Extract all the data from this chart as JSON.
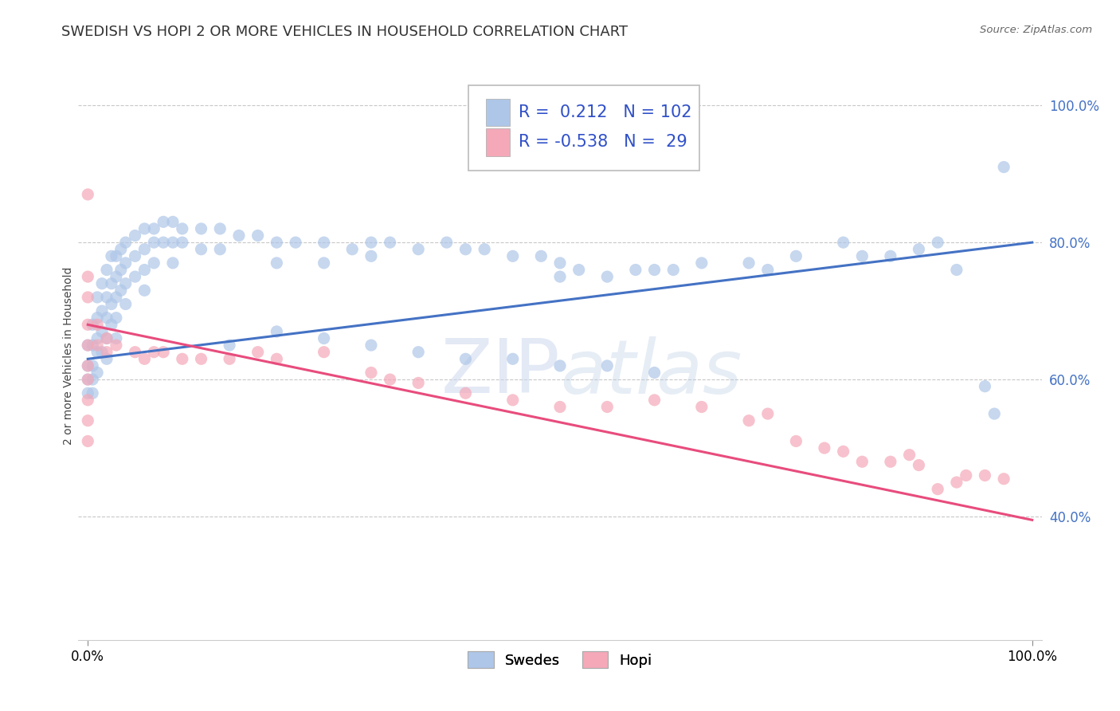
{
  "title": "SWEDISH VS HOPI 2 OR MORE VEHICLES IN HOUSEHOLD CORRELATION CHART",
  "source": "Source: ZipAtlas.com",
  "ylabel": "2 or more Vehicles in Household",
  "watermark": "ZIPatlas",
  "legend_entries": [
    {
      "label": "Swedes",
      "color": "#aec6e8",
      "R": 0.212,
      "N": 102
    },
    {
      "label": "Hopi",
      "color": "#f4a8b8",
      "R": -0.538,
      "N": 29
    }
  ],
  "swedish_scatter": [
    [
      0.0,
      0.65
    ],
    [
      0.0,
      0.62
    ],
    [
      0.0,
      0.6
    ],
    [
      0.0,
      0.58
    ],
    [
      0.005,
      0.68
    ],
    [
      0.005,
      0.65
    ],
    [
      0.005,
      0.62
    ],
    [
      0.005,
      0.6
    ],
    [
      0.005,
      0.58
    ],
    [
      0.01,
      0.72
    ],
    [
      0.01,
      0.69
    ],
    [
      0.01,
      0.66
    ],
    [
      0.01,
      0.64
    ],
    [
      0.01,
      0.61
    ],
    [
      0.015,
      0.74
    ],
    [
      0.015,
      0.7
    ],
    [
      0.015,
      0.67
    ],
    [
      0.015,
      0.64
    ],
    [
      0.02,
      0.76
    ],
    [
      0.02,
      0.72
    ],
    [
      0.02,
      0.69
    ],
    [
      0.02,
      0.66
    ],
    [
      0.02,
      0.63
    ],
    [
      0.025,
      0.78
    ],
    [
      0.025,
      0.74
    ],
    [
      0.025,
      0.71
    ],
    [
      0.025,
      0.68
    ],
    [
      0.03,
      0.78
    ],
    [
      0.03,
      0.75
    ],
    [
      0.03,
      0.72
    ],
    [
      0.03,
      0.69
    ],
    [
      0.03,
      0.66
    ],
    [
      0.035,
      0.79
    ],
    [
      0.035,
      0.76
    ],
    [
      0.035,
      0.73
    ],
    [
      0.04,
      0.8
    ],
    [
      0.04,
      0.77
    ],
    [
      0.04,
      0.74
    ],
    [
      0.04,
      0.71
    ],
    [
      0.05,
      0.81
    ],
    [
      0.05,
      0.78
    ],
    [
      0.05,
      0.75
    ],
    [
      0.06,
      0.82
    ],
    [
      0.06,
      0.79
    ],
    [
      0.06,
      0.76
    ],
    [
      0.06,
      0.73
    ],
    [
      0.07,
      0.82
    ],
    [
      0.07,
      0.8
    ],
    [
      0.07,
      0.77
    ],
    [
      0.08,
      0.83
    ],
    [
      0.08,
      0.8
    ],
    [
      0.09,
      0.83
    ],
    [
      0.09,
      0.8
    ],
    [
      0.09,
      0.77
    ],
    [
      0.1,
      0.82
    ],
    [
      0.1,
      0.8
    ],
    [
      0.12,
      0.82
    ],
    [
      0.12,
      0.79
    ],
    [
      0.14,
      0.82
    ],
    [
      0.14,
      0.79
    ],
    [
      0.16,
      0.81
    ],
    [
      0.18,
      0.81
    ],
    [
      0.2,
      0.8
    ],
    [
      0.2,
      0.77
    ],
    [
      0.22,
      0.8
    ],
    [
      0.25,
      0.8
    ],
    [
      0.25,
      0.77
    ],
    [
      0.28,
      0.79
    ],
    [
      0.3,
      0.8
    ],
    [
      0.3,
      0.78
    ],
    [
      0.32,
      0.8
    ],
    [
      0.35,
      0.79
    ],
    [
      0.38,
      0.8
    ],
    [
      0.4,
      0.79
    ],
    [
      0.42,
      0.79
    ],
    [
      0.45,
      0.78
    ],
    [
      0.48,
      0.78
    ],
    [
      0.5,
      0.77
    ],
    [
      0.5,
      0.75
    ],
    [
      0.52,
      0.76
    ],
    [
      0.55,
      0.75
    ],
    [
      0.58,
      0.76
    ],
    [
      0.6,
      0.76
    ],
    [
      0.62,
      0.76
    ],
    [
      0.65,
      0.77
    ],
    [
      0.7,
      0.77
    ],
    [
      0.72,
      0.76
    ],
    [
      0.75,
      0.78
    ],
    [
      0.8,
      0.8
    ],
    [
      0.82,
      0.78
    ],
    [
      0.85,
      0.78
    ],
    [
      0.88,
      0.79
    ],
    [
      0.9,
      0.8
    ],
    [
      0.92,
      0.76
    ],
    [
      0.95,
      0.59
    ],
    [
      0.96,
      0.55
    ],
    [
      0.97,
      0.91
    ],
    [
      0.15,
      0.65
    ],
    [
      0.2,
      0.67
    ],
    [
      0.25,
      0.66
    ],
    [
      0.3,
      0.65
    ],
    [
      0.35,
      0.64
    ],
    [
      0.4,
      0.63
    ],
    [
      0.45,
      0.63
    ],
    [
      0.5,
      0.62
    ],
    [
      0.55,
      0.62
    ],
    [
      0.6,
      0.61
    ]
  ],
  "hopi_scatter": [
    [
      0.0,
      0.87
    ],
    [
      0.0,
      0.75
    ],
    [
      0.0,
      0.72
    ],
    [
      0.0,
      0.68
    ],
    [
      0.0,
      0.65
    ],
    [
      0.0,
      0.62
    ],
    [
      0.0,
      0.6
    ],
    [
      0.0,
      0.57
    ],
    [
      0.0,
      0.54
    ],
    [
      0.0,
      0.51
    ],
    [
      0.01,
      0.68
    ],
    [
      0.01,
      0.65
    ],
    [
      0.02,
      0.66
    ],
    [
      0.02,
      0.64
    ],
    [
      0.03,
      0.65
    ],
    [
      0.05,
      0.64
    ],
    [
      0.06,
      0.63
    ],
    [
      0.07,
      0.64
    ],
    [
      0.08,
      0.64
    ],
    [
      0.1,
      0.63
    ],
    [
      0.12,
      0.63
    ],
    [
      0.15,
      0.63
    ],
    [
      0.18,
      0.64
    ],
    [
      0.2,
      0.63
    ],
    [
      0.25,
      0.64
    ],
    [
      0.3,
      0.61
    ],
    [
      0.32,
      0.6
    ],
    [
      0.35,
      0.595
    ],
    [
      0.4,
      0.58
    ],
    [
      0.45,
      0.57
    ],
    [
      0.5,
      0.56
    ],
    [
      0.55,
      0.56
    ],
    [
      0.6,
      0.57
    ],
    [
      0.65,
      0.56
    ],
    [
      0.7,
      0.54
    ],
    [
      0.72,
      0.55
    ],
    [
      0.75,
      0.51
    ],
    [
      0.78,
      0.5
    ],
    [
      0.8,
      0.495
    ],
    [
      0.82,
      0.48
    ],
    [
      0.85,
      0.48
    ],
    [
      0.87,
      0.49
    ],
    [
      0.88,
      0.475
    ],
    [
      0.9,
      0.44
    ],
    [
      0.92,
      0.45
    ],
    [
      0.93,
      0.46
    ],
    [
      0.95,
      0.46
    ],
    [
      0.97,
      0.455
    ]
  ],
  "swedish_line_x": [
    0.0,
    1.0
  ],
  "swedish_line_y": [
    0.63,
    0.8
  ],
  "hopi_line_x": [
    0.0,
    1.0
  ],
  "hopi_line_y": [
    0.68,
    0.395
  ],
  "xlim": [
    -0.01,
    1.01
  ],
  "ylim": [
    0.22,
    1.05
  ],
  "yticks": [
    0.4,
    0.6,
    0.8,
    1.0
  ],
  "ytick_labels": [
    "40.0%",
    "60.0%",
    "80.0%",
    "100.0%"
  ],
  "xtick_labels": [
    "0.0%",
    "100.0%"
  ],
  "xticks": [
    0.0,
    1.0
  ],
  "swedish_color": "#aec6e8",
  "hopi_color": "#f4a8b8",
  "swedish_line_color": "#4472c4",
  "hopi_line_color": "#e84c7d",
  "grid_color": "#c8c8c8",
  "background_color": "#ffffff",
  "title_fontsize": 13,
  "axis_label_fontsize": 10,
  "tick_fontsize": 12,
  "scatter_size": 120,
  "scatter_alpha": 0.7,
  "line_width": 2.2
}
